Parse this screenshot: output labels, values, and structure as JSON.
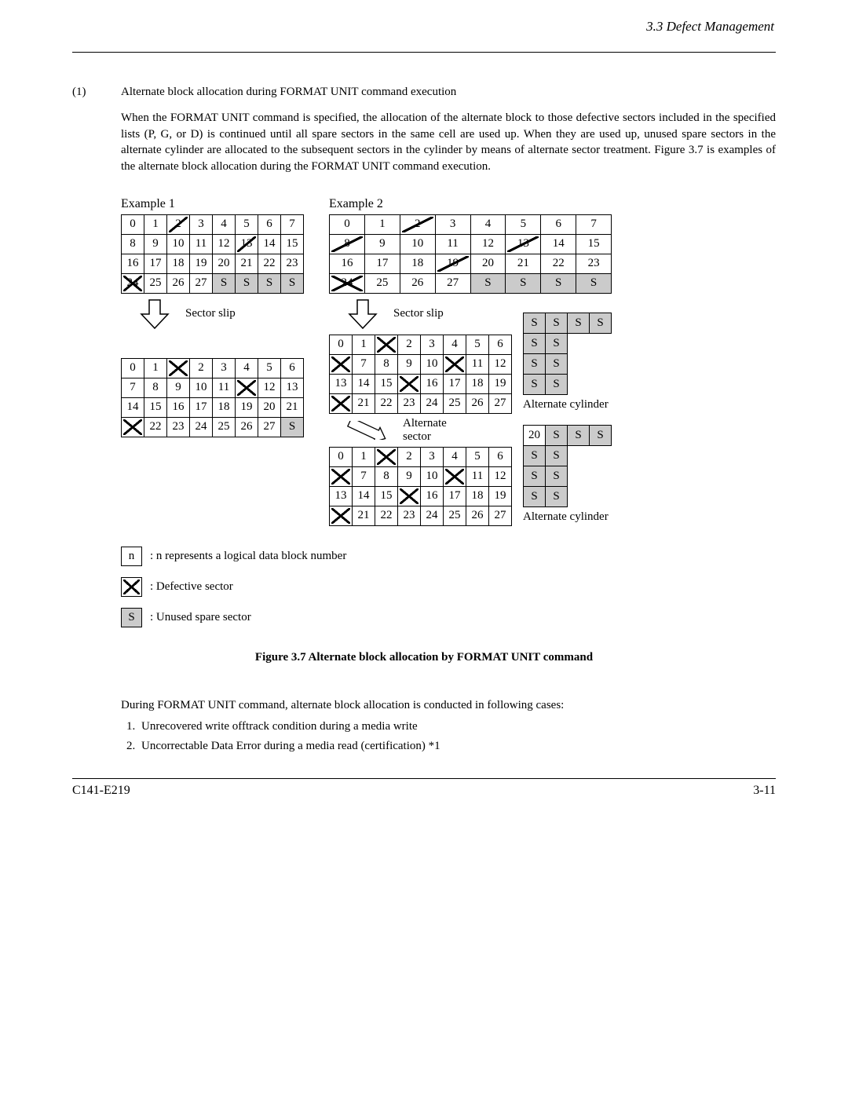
{
  "page": {
    "header": "3.3  Defect Management",
    "footer_left": "C141-E219",
    "footer_right": "3-11"
  },
  "section": {
    "num": "(1)",
    "title": "Alternate block allocation during FORMAT UNIT command execution",
    "para": "When the FORMAT UNIT command is specified, the allocation of the alternate block to those defective sectors included in the specified lists (P, G, or D) is continued until all spare sectors in the same cell are used up.  When they are used up, unused spare sectors in the alternate cylinder are allocated to the subsequent sectors in the cylinder by means of alternate sector treatment.  Figure 3.7 is examples of the alternate block allocation during the FORMAT UNIT command execution."
  },
  "diagram": {
    "ex1": {
      "label": "Example 1",
      "top": [
        [
          {
            "v": "0"
          },
          {
            "v": "1"
          },
          {
            "v": "2",
            "x": "one"
          },
          {
            "v": "3"
          },
          {
            "v": "4"
          },
          {
            "v": "5"
          },
          {
            "v": "6"
          },
          {
            "v": "7"
          }
        ],
        [
          {
            "v": "8"
          },
          {
            "v": "9"
          },
          {
            "v": "10"
          },
          {
            "v": "11"
          },
          {
            "v": "12"
          },
          {
            "v": "13",
            "x": "one"
          },
          {
            "v": "14"
          },
          {
            "v": "15"
          }
        ],
        [
          {
            "v": "16"
          },
          {
            "v": "17"
          },
          {
            "v": "18"
          },
          {
            "v": "19"
          },
          {
            "v": "20"
          },
          {
            "v": "21"
          },
          {
            "v": "22"
          },
          {
            "v": "23"
          }
        ],
        [
          {
            "v": "24",
            "x": "two"
          },
          {
            "v": "25"
          },
          {
            "v": "26"
          },
          {
            "v": "27"
          },
          {
            "v": "S",
            "s": true
          },
          {
            "v": "S",
            "s": true
          },
          {
            "v": "S",
            "s": true
          },
          {
            "v": "S",
            "s": true
          }
        ]
      ],
      "arrow_label": "Sector slip",
      "bottom": [
        [
          {
            "v": "0"
          },
          {
            "v": "1"
          },
          {
            "v": "",
            "x": "two"
          },
          {
            "v": "2"
          },
          {
            "v": "3"
          },
          {
            "v": "4"
          },
          {
            "v": "5"
          },
          {
            "v": "6"
          }
        ],
        [
          {
            "v": "7"
          },
          {
            "v": "8"
          },
          {
            "v": "9"
          },
          {
            "v": "10"
          },
          {
            "v": "11"
          },
          {
            "v": "",
            "x": "two"
          },
          {
            "v": "12"
          },
          {
            "v": "13"
          }
        ],
        [
          {
            "v": "14"
          },
          {
            "v": "15"
          },
          {
            "v": "16"
          },
          {
            "v": "17"
          },
          {
            "v": "18"
          },
          {
            "v": "19"
          },
          {
            "v": "20"
          },
          {
            "v": "21"
          }
        ],
        [
          {
            "v": "",
            "x": "two"
          },
          {
            "v": "22"
          },
          {
            "v": "23"
          },
          {
            "v": "24"
          },
          {
            "v": "25"
          },
          {
            "v": "26"
          },
          {
            "v": "27"
          },
          {
            "v": "S",
            "s": true
          }
        ]
      ]
    },
    "ex2": {
      "label": "Example 2",
      "top": [
        [
          {
            "v": "0"
          },
          {
            "v": "1"
          },
          {
            "v": "2",
            "x": "one"
          },
          {
            "v": "3"
          },
          {
            "v": "4"
          },
          {
            "v": "5"
          },
          {
            "v": "6"
          },
          {
            "v": "7"
          }
        ],
        [
          {
            "v": "8",
            "x": "one"
          },
          {
            "v": "9"
          },
          {
            "v": "10"
          },
          {
            "v": "11"
          },
          {
            "v": "12"
          },
          {
            "v": "13",
            "x": "one"
          },
          {
            "v": "14"
          },
          {
            "v": "15"
          }
        ],
        [
          {
            "v": "16"
          },
          {
            "v": "17"
          },
          {
            "v": "18"
          },
          {
            "v": "19",
            "x": "one"
          },
          {
            "v": "20"
          },
          {
            "v": "21"
          },
          {
            "v": "22"
          },
          {
            "v": "23"
          }
        ],
        [
          {
            "v": "24",
            "x": "two"
          },
          {
            "v": "25"
          },
          {
            "v": "26"
          },
          {
            "v": "27"
          },
          {
            "v": "S",
            "s": true
          },
          {
            "v": "S",
            "s": true
          },
          {
            "v": "S",
            "s": true
          },
          {
            "v": "S",
            "s": true
          }
        ]
      ],
      "arrow_label": "Sector slip",
      "mid": [
        [
          {
            "v": "0"
          },
          {
            "v": "1"
          },
          {
            "v": "",
            "x": "two"
          },
          {
            "v": "2"
          },
          {
            "v": "3"
          },
          {
            "v": "4"
          },
          {
            "v": "5"
          },
          {
            "v": "6"
          }
        ],
        [
          {
            "v": "",
            "x": "two"
          },
          {
            "v": "7"
          },
          {
            "v": "8"
          },
          {
            "v": "9"
          },
          {
            "v": "10"
          },
          {
            "v": "",
            "x": "two"
          },
          {
            "v": "11"
          },
          {
            "v": "12"
          }
        ],
        [
          {
            "v": "13"
          },
          {
            "v": "14"
          },
          {
            "v": "15"
          },
          {
            "v": "",
            "x": "two"
          },
          {
            "v": "16"
          },
          {
            "v": "17"
          },
          {
            "v": "18"
          },
          {
            "v": "19"
          }
        ],
        [
          {
            "v": "",
            "x": "two"
          },
          {
            "v": "21"
          },
          {
            "v": "22"
          },
          {
            "v": "23"
          },
          {
            "v": "24"
          },
          {
            "v": "25"
          },
          {
            "v": "26"
          },
          {
            "v": "27"
          }
        ]
      ],
      "alt_mid": [
        [
          {
            "v": "S",
            "s": true
          },
          {
            "v": "S",
            "s": true
          },
          {
            "v": "S",
            "s": true
          },
          {
            "v": "S",
            "s": true
          }
        ],
        [
          {
            "v": "S",
            "s": true
          },
          {
            "v": "S",
            "s": true
          }
        ],
        [
          {
            "v": "S",
            "s": true
          },
          {
            "v": "S",
            "s": true
          }
        ],
        [
          {
            "v": "S",
            "s": true
          },
          {
            "v": "S",
            "s": true
          }
        ]
      ],
      "alt_label": "Alternate cylinder",
      "arrow2_label": "Alternate\nsector",
      "bottom": [
        [
          {
            "v": "0"
          },
          {
            "v": "1"
          },
          {
            "v": "",
            "x": "two"
          },
          {
            "v": "2"
          },
          {
            "v": "3"
          },
          {
            "v": "4"
          },
          {
            "v": "5"
          },
          {
            "v": "6"
          }
        ],
        [
          {
            "v": "",
            "x": "two"
          },
          {
            "v": "7"
          },
          {
            "v": "8"
          },
          {
            "v": "9"
          },
          {
            "v": "10"
          },
          {
            "v": "",
            "x": "two"
          },
          {
            "v": "11"
          },
          {
            "v": "12"
          }
        ],
        [
          {
            "v": "13"
          },
          {
            "v": "14"
          },
          {
            "v": "15"
          },
          {
            "v": "",
            "x": "two"
          },
          {
            "v": "16"
          },
          {
            "v": "17"
          },
          {
            "v": "18"
          },
          {
            "v": "19"
          }
        ],
        [
          {
            "v": "",
            "x": "two"
          },
          {
            "v": "21"
          },
          {
            "v": "22"
          },
          {
            "v": "23"
          },
          {
            "v": "24"
          },
          {
            "v": "25"
          },
          {
            "v": "26"
          },
          {
            "v": "27"
          }
        ]
      ],
      "alt_bottom": [
        [
          {
            "v": "20"
          },
          {
            "v": "S",
            "s": true
          },
          {
            "v": "S",
            "s": true
          },
          {
            "v": "S",
            "s": true
          }
        ],
        [
          {
            "v": "S",
            "s": true
          },
          {
            "v": "S",
            "s": true
          }
        ],
        [
          {
            "v": "S",
            "s": true
          },
          {
            "v": "S",
            "s": true
          }
        ],
        [
          {
            "v": "S",
            "s": true
          },
          {
            "v": "S",
            "s": true
          }
        ]
      ]
    }
  },
  "legend": {
    "n_box": "n",
    "n_text": ":   n represents a logical data block number",
    "x_text": ":   Defective sector",
    "s_box": "S",
    "s_text": ":   Unused spare sector"
  },
  "caption": "Figure 3.7      Alternate block allocation by FORMAT UNIT command",
  "lower": {
    "intro": "During FORMAT UNIT command, alternate block allocation is conducted in following cases:",
    "items": [
      "Unrecovered write offtrack condition during a media write",
      "Uncorrectable Data Error during a media read (certification) *1"
    ]
  }
}
